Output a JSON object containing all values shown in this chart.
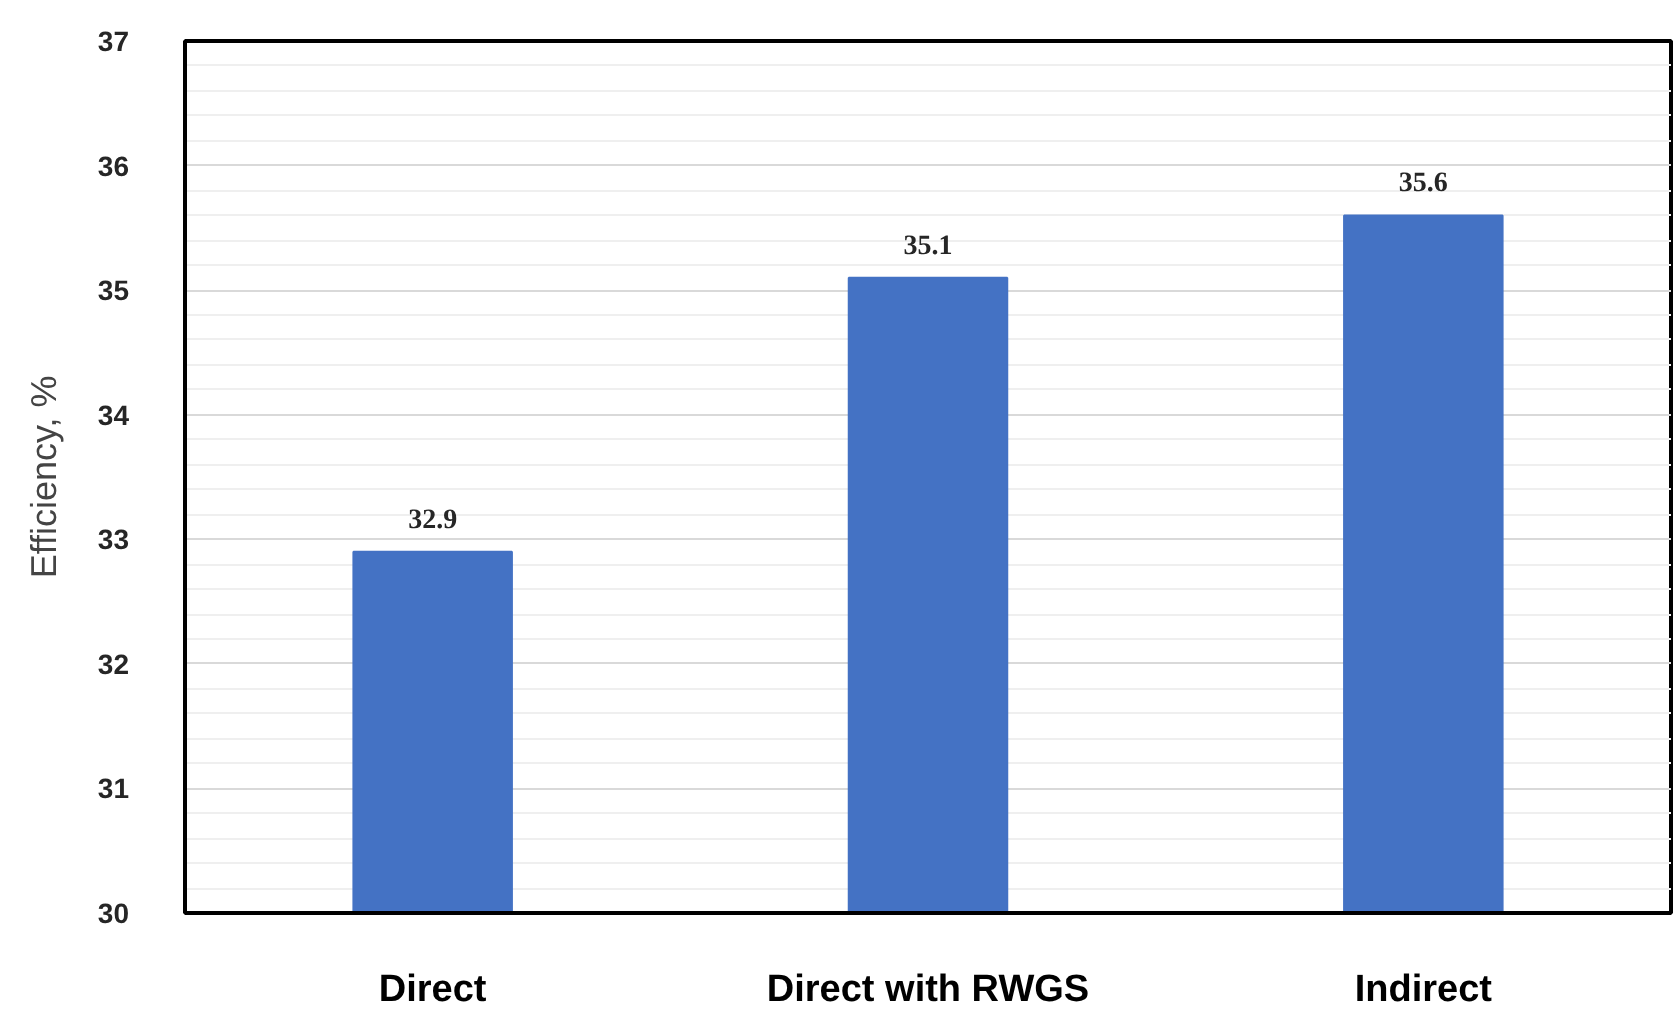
{
  "chart_data": {
    "type": "bar",
    "ylabel": "Efficiency, %",
    "categories": [
      "Direct",
      "Direct with RWGS",
      "Indirect"
    ],
    "values": [
      32.9,
      35.1,
      35.6
    ],
    "color": "#4472c4",
    "ylim": [
      30,
      37
    ],
    "yticks": [
      30,
      31,
      32,
      33,
      34,
      35,
      36,
      37
    ],
    "grid": "y",
    "data_labels": true
  }
}
